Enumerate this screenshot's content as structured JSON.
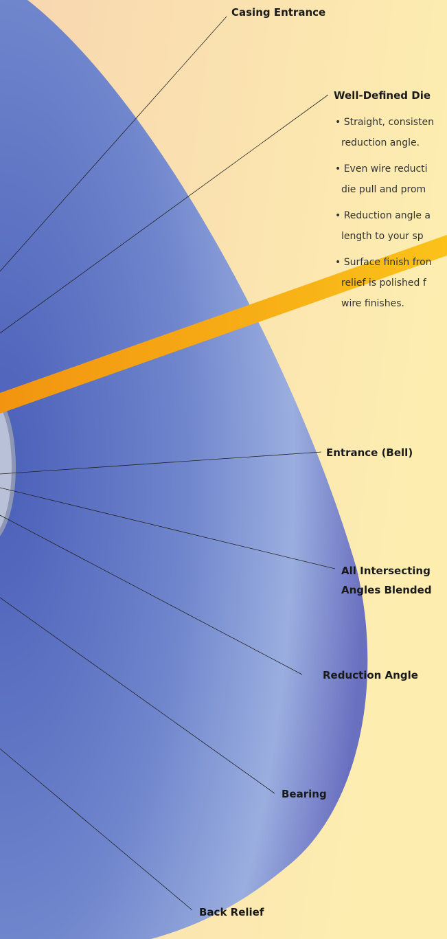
{
  "labels": {
    "casing_entrance": "Casing Entrance",
    "entrance_bell": "Entrance (Bell)",
    "all_intersecting": [
      "All Intersecting",
      "Angles Blended"
    ],
    "reduction_angle": "Reduction Angle",
    "bearing": "Bearing",
    "back_relief": "Back Relief"
  },
  "panel": {
    "title": "Well-Defined Die",
    "bullets": [
      [
        "• Straight, consisten",
        "reduction angle."
      ],
      [
        "• Even wire reducti",
        "die pull and prom"
      ],
      [
        "• Reduction angle a",
        "length to your sp"
      ],
      [
        "• Surface finish fron",
        "relief is polished f",
        "wire finishes."
      ]
    ]
  }
}
